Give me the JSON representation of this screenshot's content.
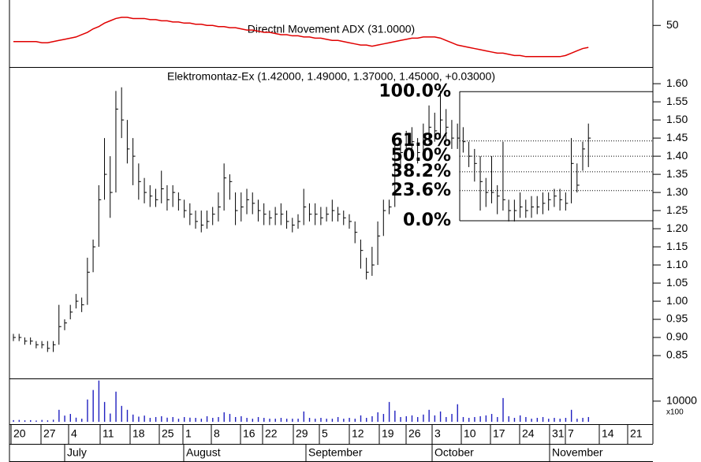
{
  "chart_data": [
    {
      "type": "line",
      "title": "Directnl Movement ADX (31.0000)",
      "color": "#e00000",
      "ylim": [
        14,
        72
      ],
      "yticks": [
        50
      ],
      "values": [
        36,
        36,
        36,
        36,
        36,
        35,
        35,
        36,
        37,
        38,
        39,
        40,
        42,
        44,
        47,
        49,
        52,
        54,
        56,
        57,
        57,
        56,
        56,
        56,
        55,
        55,
        54,
        54,
        53,
        53,
        52,
        52,
        51,
        51,
        50,
        50,
        49,
        49,
        48,
        48,
        47,
        46,
        46,
        45,
        44,
        44,
        43,
        42,
        42,
        41,
        41,
        40,
        40,
        39,
        39,
        38,
        37,
        37,
        36,
        35,
        34,
        33,
        33,
        32,
        33,
        34,
        35,
        36,
        37,
        38,
        39,
        39,
        40,
        40,
        40,
        39,
        37,
        35,
        33,
        32,
        31,
        30,
        29,
        28,
        27,
        26,
        26,
        25,
        24,
        24,
        23,
        23,
        23,
        23,
        23,
        23,
        23,
        24,
        26,
        28,
        30,
        31
      ]
    },
    {
      "type": "ohlc",
      "title": "Elektromontaz-Ex (1.42000, 1.49000, 1.37000, 1.45000, +0.03000)",
      "color": "#000000",
      "ylim": [
        0.787,
        1.646
      ],
      "yticks": [
        0.85,
        {
          "value": 0.9,
          "label": "0.90"
        },
        0.95,
        {
          "value": 1.0,
          "label": "1.00"
        },
        1.05,
        {
          "value": 1.1,
          "label": "1.10"
        },
        1.15,
        {
          "value": 1.2,
          "label": "1.20"
        },
        1.25,
        {
          "value": 1.3,
          "label": "1.30"
        },
        1.35,
        {
          "value": 1.4,
          "label": "1.40"
        },
        1.45,
        {
          "value": 1.5,
          "label": "1.50"
        },
        1.55,
        {
          "value": 1.6,
          "label": "1.60"
        }
      ],
      "high": [
        0.91,
        0.91,
        0.9,
        0.9,
        0.89,
        0.89,
        0.89,
        0.89,
        0.99,
        0.95,
        0.99,
        1.02,
        1.01,
        1.12,
        1.17,
        1.32,
        1.45,
        1.4,
        1.58,
        1.59,
        1.5,
        1.45,
        1.38,
        1.34,
        1.32,
        1.31,
        1.36,
        1.32,
        1.32,
        1.3,
        1.28,
        1.27,
        1.25,
        1.25,
        1.25,
        1.26,
        1.3,
        1.38,
        1.35,
        1.3,
        1.3,
        1.31,
        1.3,
        1.28,
        1.27,
        1.25,
        1.26,
        1.27,
        1.25,
        1.23,
        1.24,
        1.31,
        1.27,
        1.27,
        1.26,
        1.26,
        1.28,
        1.26,
        1.25,
        1.24,
        1.22,
        1.17,
        1.12,
        1.15,
        1.22,
        1.28,
        1.28,
        1.45,
        1.45,
        1.47,
        1.48,
        1.45,
        1.49,
        1.54,
        1.52,
        1.58,
        1.53,
        1.5,
        1.49,
        1.48,
        1.44,
        1.42,
        1.4,
        1.34,
        1.4,
        1.32,
        1.44,
        1.28,
        1.28,
        1.3,
        1.28,
        1.29,
        1.29,
        1.3,
        1.3,
        1.31,
        1.31,
        1.3,
        1.45,
        1.38,
        1.44,
        1.49
      ],
      "low": [
        0.89,
        0.89,
        0.88,
        0.88,
        0.87,
        0.87,
        0.86,
        0.86,
        0.88,
        0.92,
        0.95,
        0.98,
        0.97,
        0.99,
        1.08,
        1.15,
        1.28,
        1.23,
        1.3,
        1.45,
        1.38,
        1.32,
        1.28,
        1.27,
        1.26,
        1.26,
        1.27,
        1.25,
        1.26,
        1.25,
        1.23,
        1.21,
        1.2,
        1.19,
        1.2,
        1.21,
        1.22,
        1.25,
        1.28,
        1.21,
        1.22,
        1.24,
        1.24,
        1.22,
        1.21,
        1.21,
        1.21,
        1.21,
        1.2,
        1.19,
        1.2,
        1.21,
        1.22,
        1.21,
        1.21,
        1.22,
        1.22,
        1.22,
        1.21,
        1.2,
        1.16,
        1.09,
        1.06,
        1.07,
        1.1,
        1.18,
        1.24,
        1.26,
        1.37,
        1.4,
        1.4,
        1.38,
        1.41,
        1.44,
        1.44,
        1.45,
        1.44,
        1.42,
        1.42,
        1.41,
        1.37,
        1.33,
        1.25,
        1.26,
        1.27,
        1.24,
        1.25,
        1.22,
        1.22,
        1.23,
        1.23,
        1.23,
        1.24,
        1.24,
        1.25,
        1.26,
        1.25,
        1.25,
        1.27,
        1.3,
        1.36,
        1.37
      ],
      "close": [
        0.9,
        0.9,
        0.89,
        0.89,
        0.88,
        0.88,
        0.87,
        0.88,
        0.93,
        0.94,
        0.97,
        1.0,
        0.99,
        1.08,
        1.15,
        1.28,
        1.35,
        1.3,
        1.53,
        1.5,
        1.42,
        1.4,
        1.33,
        1.3,
        1.29,
        1.28,
        1.31,
        1.28,
        1.3,
        1.28,
        1.25,
        1.24,
        1.22,
        1.21,
        1.22,
        1.24,
        1.26,
        1.34,
        1.33,
        1.25,
        1.26,
        1.28,
        1.27,
        1.25,
        1.24,
        1.23,
        1.24,
        1.24,
        1.22,
        1.21,
        1.22,
        1.26,
        1.24,
        1.24,
        1.23,
        1.24,
        1.25,
        1.24,
        1.23,
        1.22,
        1.19,
        1.14,
        1.08,
        1.1,
        1.18,
        1.25,
        1.26,
        1.38,
        1.41,
        1.43,
        1.44,
        1.41,
        1.46,
        1.48,
        1.47,
        1.5,
        1.48,
        1.45,
        1.45,
        1.44,
        1.4,
        1.38,
        1.33,
        1.3,
        1.3,
        1.29,
        1.28,
        1.25,
        1.25,
        1.26,
        1.25,
        1.26,
        1.26,
        1.27,
        1.28,
        1.29,
        1.28,
        1.27,
        1.38,
        1.32,
        1.42,
        1.45
      ],
      "fib_levels": [
        {
          "value": 1.578,
          "label": "100.0%"
        },
        {
          "value": 1.442,
          "label": "61.8%"
        },
        {
          "value": 1.4,
          "label": "50.0%"
        },
        {
          "value": 1.357,
          "label": "38.2%"
        },
        {
          "value": 1.305,
          "label": "23.6%"
        },
        {
          "value": 1.222,
          "label": "0.0%"
        }
      ]
    },
    {
      "type": "bar",
      "color": "#2020c0",
      "ylim": [
        0,
        21000
      ],
      "yticks": [
        10000
      ],
      "unit_label": "x100",
      "values": [
        800,
        900,
        700,
        800,
        600,
        900,
        700,
        1000,
        5800,
        3000,
        3800,
        2000,
        1500,
        10800,
        15400,
        20000,
        9600,
        4000,
        14600,
        7700,
        5800,
        3500,
        2500,
        3000,
        1900,
        2300,
        2700,
        2000,
        2300,
        1500,
        2300,
        2000,
        1900,
        1500,
        2700,
        1900,
        2300,
        4600,
        3800,
        2300,
        2700,
        1900,
        1500,
        2300,
        1900,
        1500,
        1500,
        1900,
        1500,
        1500,
        1500,
        5000,
        1900,
        1500,
        1900,
        1500,
        1500,
        2300,
        1500,
        1900,
        1500,
        3100,
        1900,
        2700,
        4600,
        3800,
        9600,
        5400,
        2300,
        2700,
        3100,
        2300,
        3500,
        5800,
        3100,
        5000,
        2300,
        3800,
        8500,
        2300,
        1900,
        2300,
        2700,
        3100,
        3800,
        2300,
        11500,
        2700,
        1900,
        3100,
        2300,
        1500,
        1900,
        2300,
        1500,
        1900,
        1500,
        1900,
        5800,
        1500,
        1900,
        2300
      ]
    }
  ],
  "date_axis": {
    "days": [
      "20",
      "27",
      "4",
      "11",
      "18",
      "25",
      "1",
      "8",
      "16",
      "22",
      "29",
      "5",
      "12",
      "19",
      "26",
      "3",
      "10",
      "17",
      "24",
      "31",
      "7",
      "14",
      "21"
    ],
    "months": [
      "July",
      "August",
      "September",
      "October",
      "November"
    ]
  }
}
